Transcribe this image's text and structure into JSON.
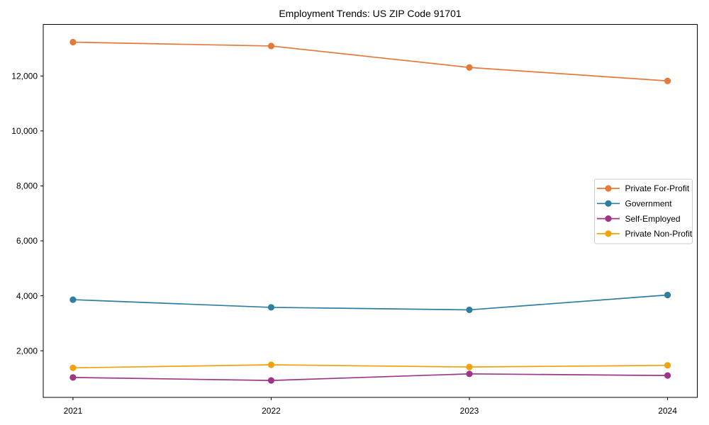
{
  "chart_data": {
    "type": "line",
    "title": "Employment Trends: US ZIP Code 91701",
    "xlabel": "",
    "ylabel": "",
    "x": [
      2021,
      2022,
      2023,
      2024
    ],
    "x_tick_labels": [
      "2021",
      "2022",
      "2023",
      "2024"
    ],
    "series": [
      {
        "name": "Private For-Profit",
        "color": "#E5793A",
        "values": [
          13230,
          13090,
          12310,
          11820
        ]
      },
      {
        "name": "Government",
        "color": "#2E7F9F",
        "values": [
          3860,
          3580,
          3490,
          4030
        ]
      },
      {
        "name": "Self-Employed",
        "color": "#9E3687",
        "values": [
          1030,
          920,
          1160,
          1100
        ]
      },
      {
        "name": "Private Non-Profit",
        "color": "#F0A30A",
        "values": [
          1380,
          1490,
          1410,
          1470
        ]
      }
    ],
    "yticks": [
      2000,
      4000,
      6000,
      8000,
      10000,
      12000
    ],
    "ytick_labels": [
      "2,000",
      "4,000",
      "6,000",
      "8,000",
      "10,000",
      "12,000"
    ],
    "ylim": [
      305,
      13875
    ],
    "xlim": [
      2020.85,
      2024.15
    ],
    "grid": false,
    "marker": "circle",
    "legend_position": "center right",
    "frame_color": "#000000",
    "legend_border_color": "#cccccc",
    "background_color": "#ffffff"
  }
}
